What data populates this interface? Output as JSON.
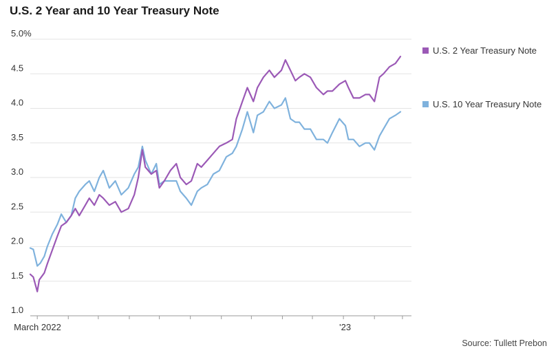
{
  "chart_data": {
    "type": "line",
    "title": "U.S. 2 Year and 10 Year Treasury Note",
    "source": "Source: Tullett Prebon",
    "xlabel": "",
    "ylabel": "",
    "ylim": [
      1.0,
      5.0
    ],
    "yticks": [
      "1.0",
      "1.5",
      "2.0",
      "2.5",
      "3.0",
      "3.5",
      "4.0",
      "4.5",
      "5.0%"
    ],
    "xtick_labels": [
      {
        "x": "2022-03-01",
        "label": "March 2022"
      },
      {
        "x": "2023-01-01",
        "label": "'23"
      }
    ],
    "xlim": [
      "2022-02-22",
      "2023-03-10"
    ],
    "grid": true,
    "legend_position": "right",
    "series": [
      {
        "name": "U.S. 2 Year Treasury Note",
        "color": "#9b59b6",
        "points": [
          [
            "2022-02-22",
            1.6
          ],
          [
            "2022-02-25",
            1.56
          ],
          [
            "2022-03-01",
            1.35
          ],
          [
            "2022-03-03",
            1.52
          ],
          [
            "2022-03-08",
            1.62
          ],
          [
            "2022-03-11",
            1.75
          ],
          [
            "2022-03-16",
            1.95
          ],
          [
            "2022-03-21",
            2.15
          ],
          [
            "2022-03-25",
            2.3
          ],
          [
            "2022-03-30",
            2.35
          ],
          [
            "2022-04-04",
            2.45
          ],
          [
            "2022-04-08",
            2.55
          ],
          [
            "2022-04-12",
            2.45
          ],
          [
            "2022-04-18",
            2.6
          ],
          [
            "2022-04-22",
            2.7
          ],
          [
            "2022-04-27",
            2.6
          ],
          [
            "2022-05-02",
            2.75
          ],
          [
            "2022-05-06",
            2.7
          ],
          [
            "2022-05-12",
            2.6
          ],
          [
            "2022-05-18",
            2.65
          ],
          [
            "2022-05-24",
            2.5
          ],
          [
            "2022-05-31",
            2.55
          ],
          [
            "2022-06-06",
            2.75
          ],
          [
            "2022-06-10",
            3.0
          ],
          [
            "2022-06-14",
            3.4
          ],
          [
            "2022-06-17",
            3.15
          ],
          [
            "2022-06-23",
            3.05
          ],
          [
            "2022-06-28",
            3.1
          ],
          [
            "2022-07-01",
            2.85
          ],
          [
            "2022-07-06",
            2.95
          ],
          [
            "2022-07-12",
            3.1
          ],
          [
            "2022-07-18",
            3.2
          ],
          [
            "2022-07-22",
            3.0
          ],
          [
            "2022-07-28",
            2.9
          ],
          [
            "2022-08-02",
            2.95
          ],
          [
            "2022-08-08",
            3.2
          ],
          [
            "2022-08-12",
            3.15
          ],
          [
            "2022-08-18",
            3.25
          ],
          [
            "2022-08-24",
            3.35
          ],
          [
            "2022-08-30",
            3.45
          ],
          [
            "2022-09-06",
            3.5
          ],
          [
            "2022-09-12",
            3.55
          ],
          [
            "2022-09-16",
            3.85
          ],
          [
            "2022-09-22",
            4.1
          ],
          [
            "2022-09-27",
            4.3
          ],
          [
            "2022-10-03",
            4.1
          ],
          [
            "2022-10-07",
            4.3
          ],
          [
            "2022-10-13",
            4.45
          ],
          [
            "2022-10-19",
            4.55
          ],
          [
            "2022-10-24",
            4.45
          ],
          [
            "2022-10-31",
            4.55
          ],
          [
            "2022-11-04",
            4.7
          ],
          [
            "2022-11-09",
            4.55
          ],
          [
            "2022-11-14",
            4.4
          ],
          [
            "2022-11-18",
            4.45
          ],
          [
            "2022-11-23",
            4.5
          ],
          [
            "2022-11-29",
            4.45
          ],
          [
            "2022-12-05",
            4.3
          ],
          [
            "2022-12-12",
            4.2
          ],
          [
            "2022-12-16",
            4.25
          ],
          [
            "2022-12-21",
            4.25
          ],
          [
            "2022-12-28",
            4.35
          ],
          [
            "2023-01-03",
            4.4
          ],
          [
            "2023-01-06",
            4.3
          ],
          [
            "2023-01-11",
            4.15
          ],
          [
            "2023-01-17",
            4.15
          ],
          [
            "2023-01-23",
            4.2
          ],
          [
            "2023-01-27",
            4.2
          ],
          [
            "2023-02-01",
            4.1
          ],
          [
            "2023-02-06",
            4.45
          ],
          [
            "2023-02-10",
            4.5
          ],
          [
            "2023-02-16",
            4.6
          ],
          [
            "2023-02-22",
            4.65
          ],
          [
            "2023-02-27",
            4.75
          ]
        ]
      },
      {
        "name": "U.S. 10 Year Treasury Note",
        "color": "#7fb2dd",
        "points": [
          [
            "2022-02-22",
            1.98
          ],
          [
            "2022-02-25",
            1.96
          ],
          [
            "2022-03-01",
            1.72
          ],
          [
            "2022-03-04",
            1.76
          ],
          [
            "2022-03-08",
            1.86
          ],
          [
            "2022-03-11",
            2.0
          ],
          [
            "2022-03-16",
            2.18
          ],
          [
            "2022-03-21",
            2.32
          ],
          [
            "2022-03-25",
            2.47
          ],
          [
            "2022-03-30",
            2.35
          ],
          [
            "2022-04-04",
            2.45
          ],
          [
            "2022-04-08",
            2.7
          ],
          [
            "2022-04-12",
            2.8
          ],
          [
            "2022-04-18",
            2.9
          ],
          [
            "2022-04-22",
            2.95
          ],
          [
            "2022-04-27",
            2.8
          ],
          [
            "2022-05-02",
            3.0
          ],
          [
            "2022-05-06",
            3.1
          ],
          [
            "2022-05-12",
            2.85
          ],
          [
            "2022-05-18",
            2.95
          ],
          [
            "2022-05-24",
            2.75
          ],
          [
            "2022-05-31",
            2.85
          ],
          [
            "2022-06-06",
            3.05
          ],
          [
            "2022-06-10",
            3.15
          ],
          [
            "2022-06-14",
            3.45
          ],
          [
            "2022-06-17",
            3.25
          ],
          [
            "2022-06-23",
            3.05
          ],
          [
            "2022-06-28",
            3.2
          ],
          [
            "2022-07-01",
            2.9
          ],
          [
            "2022-07-06",
            2.95
          ],
          [
            "2022-07-12",
            2.95
          ],
          [
            "2022-07-18",
            2.95
          ],
          [
            "2022-07-22",
            2.8
          ],
          [
            "2022-07-28",
            2.7
          ],
          [
            "2022-08-02",
            2.6
          ],
          [
            "2022-08-08",
            2.8
          ],
          [
            "2022-08-12",
            2.85
          ],
          [
            "2022-08-18",
            2.9
          ],
          [
            "2022-08-24",
            3.05
          ],
          [
            "2022-08-30",
            3.1
          ],
          [
            "2022-09-06",
            3.3
          ],
          [
            "2022-09-12",
            3.35
          ],
          [
            "2022-09-16",
            3.45
          ],
          [
            "2022-09-22",
            3.7
          ],
          [
            "2022-09-27",
            3.95
          ],
          [
            "2022-10-03",
            3.65
          ],
          [
            "2022-10-07",
            3.9
          ],
          [
            "2022-10-13",
            3.95
          ],
          [
            "2022-10-19",
            4.1
          ],
          [
            "2022-10-24",
            4.0
          ],
          [
            "2022-10-31",
            4.05
          ],
          [
            "2022-11-04",
            4.15
          ],
          [
            "2022-11-09",
            3.85
          ],
          [
            "2022-11-14",
            3.8
          ],
          [
            "2022-11-18",
            3.8
          ],
          [
            "2022-11-23",
            3.7
          ],
          [
            "2022-11-29",
            3.7
          ],
          [
            "2022-12-05",
            3.55
          ],
          [
            "2022-12-12",
            3.55
          ],
          [
            "2022-12-16",
            3.5
          ],
          [
            "2022-12-21",
            3.65
          ],
          [
            "2022-12-28",
            3.85
          ],
          [
            "2023-01-03",
            3.75
          ],
          [
            "2023-01-06",
            3.55
          ],
          [
            "2023-01-11",
            3.55
          ],
          [
            "2023-01-17",
            3.45
          ],
          [
            "2023-01-23",
            3.5
          ],
          [
            "2023-01-27",
            3.5
          ],
          [
            "2023-02-01",
            3.4
          ],
          [
            "2023-02-06",
            3.6
          ],
          [
            "2023-02-10",
            3.7
          ],
          [
            "2023-02-16",
            3.85
          ],
          [
            "2023-02-22",
            3.9
          ],
          [
            "2023-02-27",
            3.95
          ]
        ]
      }
    ]
  }
}
